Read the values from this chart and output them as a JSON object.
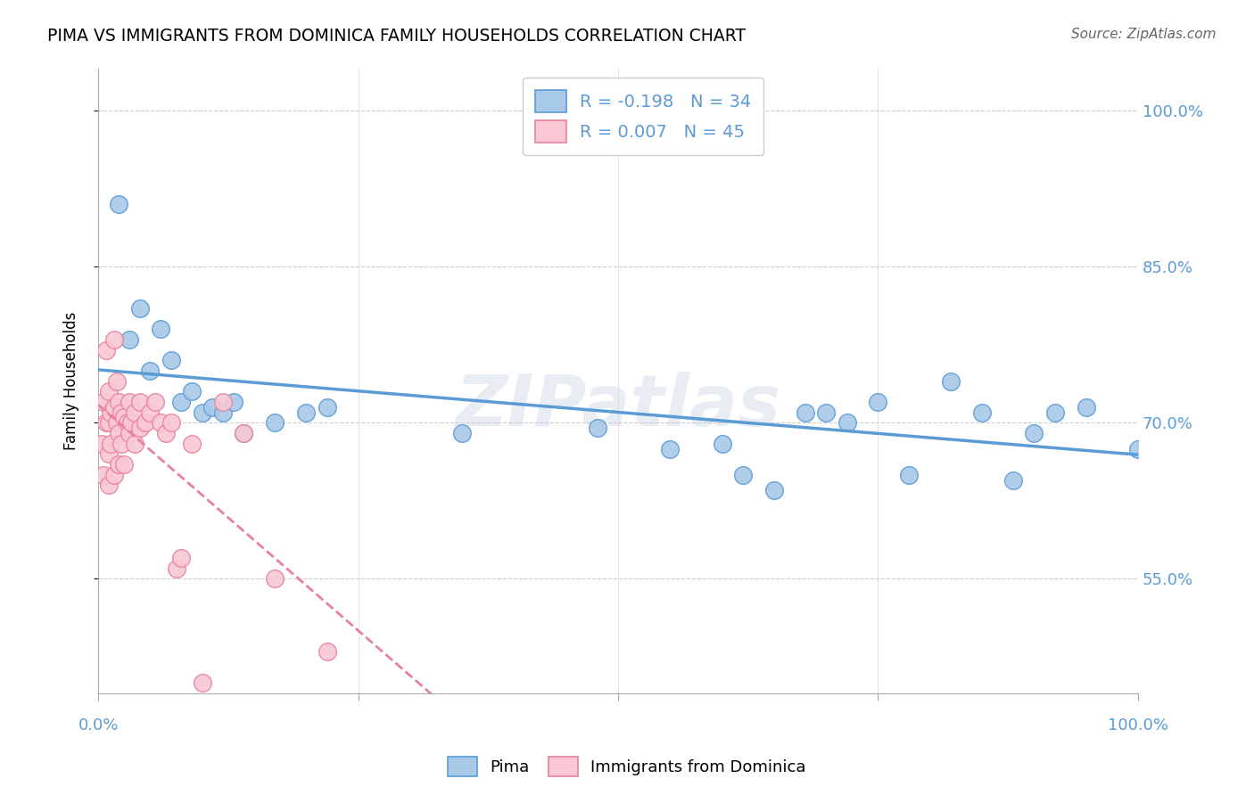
{
  "title": "PIMA VS IMMIGRANTS FROM DOMINICA FAMILY HOUSEHOLDS CORRELATION CHART",
  "source": "Source: ZipAtlas.com",
  "ylabel": "Family Households",
  "watermark": "ZIPatlas",
  "pima_r": -0.198,
  "pima_n": 34,
  "dominica_r": 0.007,
  "dominica_n": 45,
  "y_ticks": [
    55.0,
    70.0,
    85.0,
    100.0
  ],
  "x_range": [
    0.0,
    100.0
  ],
  "y_range": [
    44.0,
    104.0
  ],
  "pima_color": "#a8c8e8",
  "pima_line_color": "#5b9bd5",
  "dominica_color": "#f9c8d4",
  "dominica_line_color": "#e8829a",
  "pima_scatter_x": [
    2.0,
    3.0,
    4.0,
    5.0,
    6.0,
    7.0,
    8.0,
    9.0,
    10.0,
    11.0,
    12.0,
    13.0,
    14.0,
    17.0,
    20.0,
    22.0,
    35.0,
    48.0,
    55.0,
    60.0,
    62.0,
    65.0,
    68.0,
    70.0,
    72.0,
    75.0,
    78.0,
    82.0,
    85.0,
    88.0,
    90.0,
    92.0,
    95.0,
    100.0
  ],
  "pima_scatter_y": [
    91.0,
    78.0,
    81.0,
    75.0,
    79.0,
    76.0,
    72.0,
    73.0,
    71.0,
    71.5,
    71.0,
    72.0,
    69.0,
    70.0,
    71.0,
    71.5,
    69.0,
    69.5,
    67.5,
    68.0,
    65.0,
    63.5,
    71.0,
    71.0,
    70.0,
    72.0,
    65.0,
    74.0,
    71.0,
    64.5,
    69.0,
    71.0,
    71.5,
    67.5
  ],
  "dominica_scatter_x": [
    0.3,
    0.5,
    0.5,
    0.8,
    0.8,
    1.0,
    1.0,
    1.0,
    1.0,
    1.2,
    1.2,
    1.5,
    1.5,
    1.5,
    1.8,
    1.8,
    2.0,
    2.0,
    2.0,
    2.2,
    2.2,
    2.5,
    2.5,
    2.8,
    3.0,
    3.0,
    3.2,
    3.5,
    3.5,
    4.0,
    4.0,
    4.5,
    5.0,
    5.5,
    6.0,
    6.5,
    7.0,
    7.5,
    8.0,
    9.0,
    10.0,
    12.0,
    14.0,
    17.0,
    22.0
  ],
  "dominica_scatter_y": [
    68.0,
    72.0,
    65.0,
    77.0,
    70.0,
    73.0,
    70.0,
    67.0,
    64.0,
    71.0,
    68.0,
    78.0,
    71.5,
    65.0,
    74.0,
    70.0,
    72.0,
    69.0,
    66.0,
    71.0,
    68.0,
    70.5,
    66.0,
    70.0,
    72.0,
    69.0,
    70.0,
    71.0,
    68.0,
    72.0,
    69.5,
    70.0,
    71.0,
    72.0,
    70.0,
    69.0,
    70.0,
    56.0,
    57.0,
    68.0,
    45.0,
    72.0,
    69.0,
    55.0,
    48.0
  ]
}
